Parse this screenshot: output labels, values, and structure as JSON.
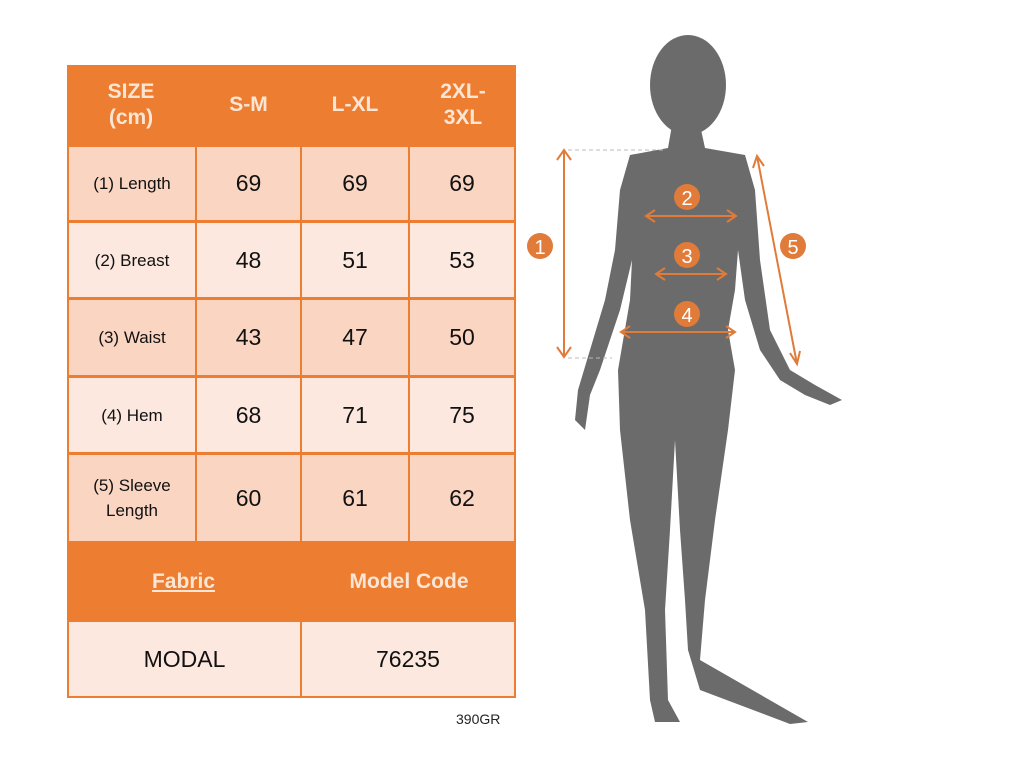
{
  "table": {
    "header": [
      "SIZE\n(cm)",
      "S-M",
      "L-XL",
      "2XL-\n3XL"
    ],
    "header_lines": [
      [
        "SIZE",
        "(cm)"
      ],
      [
        "S-M"
      ],
      [
        "L-XL"
      ],
      [
        "2XL-",
        "3XL"
      ]
    ],
    "rows": [
      {
        "label": "(1) Length",
        "values": [
          "69",
          "69",
          "69"
        ]
      },
      {
        "label": "(2) Breast",
        "values": [
          "48",
          "51",
          "53"
        ]
      },
      {
        "label": "(3) Waist",
        "values": [
          "43",
          "47",
          "50"
        ]
      },
      {
        "label": "(4) Hem",
        "values": [
          "68",
          "71",
          "75"
        ]
      },
      {
        "label_lines": [
          "(5) Sleeve",
          "Length"
        ],
        "values": [
          "60",
          "61",
          "62"
        ]
      }
    ],
    "fabric_label": "Fabric",
    "model_code_label": "Model Code",
    "fabric_value": "MODAL",
    "model_code_value": "76235"
  },
  "footer_code": "390GR",
  "figure": {
    "markers": [
      "1",
      "2",
      "3",
      "4",
      "5"
    ]
  },
  "colors": {
    "accent": "#ed7d31",
    "silhouette": "#6b6b6b",
    "cell_light": "#fce8de",
    "cell_dark": "#f9d5c2"
  }
}
